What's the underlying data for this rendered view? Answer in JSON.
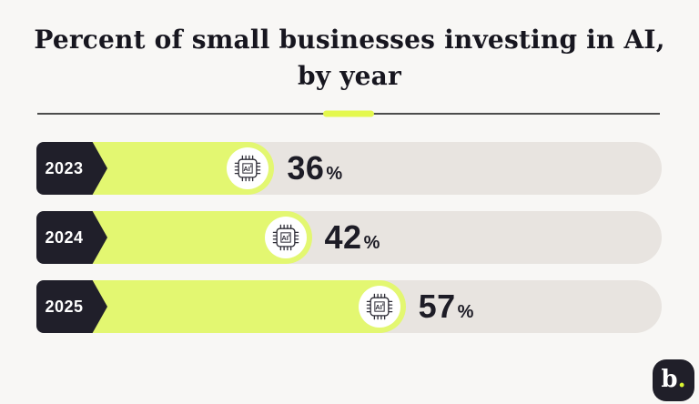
{
  "page": {
    "background": "#f8f7f5"
  },
  "title": {
    "line1": "Percent of small businesses investing in AI,",
    "line2": "by year"
  },
  "divider": {
    "line_color": "#4c4c4c",
    "accent_color": "#e4f84e"
  },
  "chart_data": {
    "type": "bar",
    "orientation": "horizontal",
    "title": "Percent of small businesses investing in AI, by year",
    "categories": [
      "2023",
      "2024",
      "2025"
    ],
    "values": [
      36,
      42,
      57
    ],
    "unit": "%",
    "xlim": [
      0,
      100
    ],
    "grid": false,
    "legend": "none",
    "bar_color": "#e3f771",
    "track_color": "#e8e4e0",
    "year_tag_color": "#201f2a",
    "value_label_color": "#1d1c26",
    "bar_icon": "ai-chip-icon"
  },
  "logo": {
    "text": "b",
    "dot": ".",
    "background": "#201f29",
    "dot_color": "#d9f432"
  }
}
